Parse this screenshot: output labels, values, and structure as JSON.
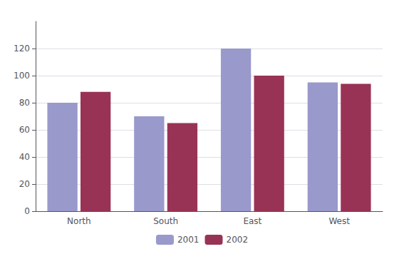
{
  "chart_data": {
    "type": "bar",
    "categories": [
      "North",
      "South",
      "East",
      "West"
    ],
    "series": [
      {
        "name": "2001",
        "color": "#9999cc",
        "values": [
          80,
          70,
          120,
          95
        ]
      },
      {
        "name": "2002",
        "color": "#993355",
        "values": [
          88,
          65,
          100,
          94
        ]
      }
    ],
    "ylim": [
      0,
      140
    ],
    "yticks": [
      0,
      20,
      40,
      60,
      80,
      100,
      120
    ],
    "grid": true,
    "legend": "bottom"
  }
}
